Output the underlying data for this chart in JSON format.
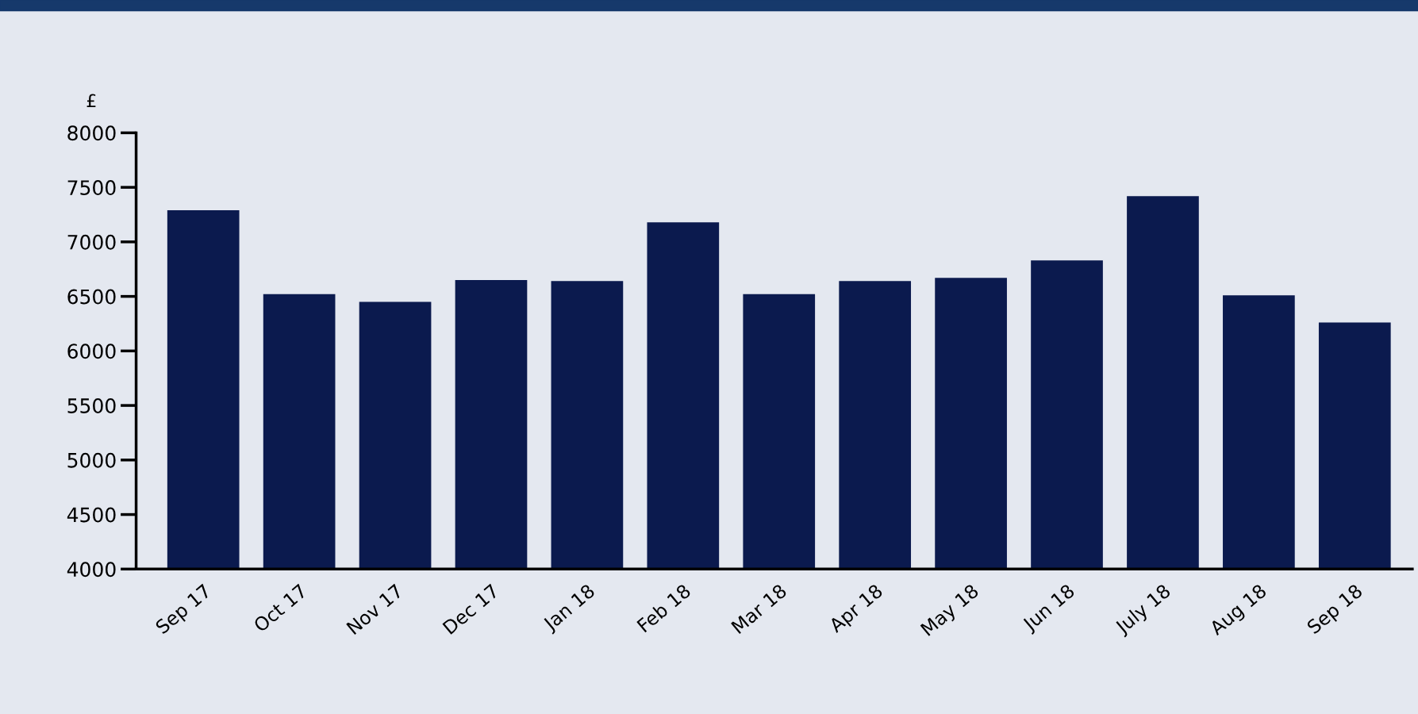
{
  "chart_data": {
    "type": "bar",
    "ylabel": "£",
    "categories": [
      "Sep 17",
      "Oct 17",
      "Nov 17",
      "Dec 17",
      "Jan 18",
      "Feb 18",
      "Mar 18",
      "Apr 18",
      "May 18",
      "Jun 18",
      "July 18",
      "Aug 18",
      "Sep 18"
    ],
    "values": [
      7290,
      6520,
      6450,
      6650,
      6640,
      7180,
      6520,
      6640,
      6670,
      6830,
      7420,
      6510,
      6260
    ],
    "color": "#0b1a4e",
    "ylim": [
      4000,
      8000
    ],
    "yticks": [
      4000,
      4500,
      5000,
      5500,
      6000,
      6500,
      7000,
      7500,
      8000
    ],
    "grid": false,
    "legend": false
  }
}
